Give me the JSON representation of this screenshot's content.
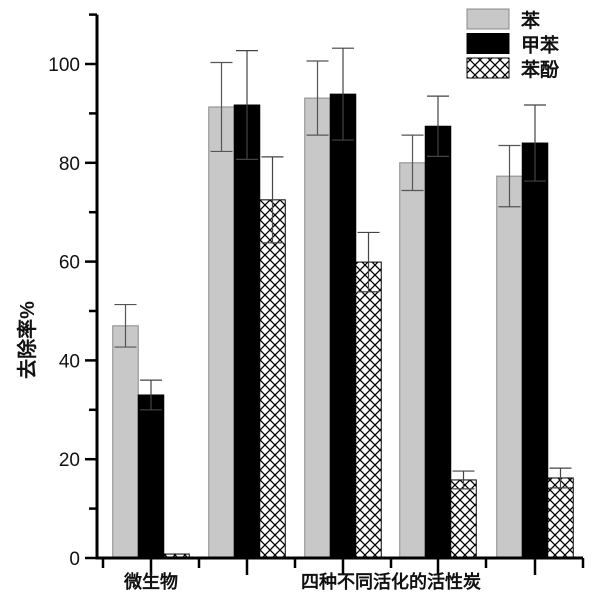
{
  "chart_data": {
    "type": "bar",
    "title": "",
    "xlabel": "",
    "ylabel": "去除率%",
    "ylim": [
      0,
      110
    ],
    "yticks": [
      0,
      20,
      40,
      60,
      80,
      100
    ],
    "grid": false,
    "legend_position": "top-right",
    "group_labels": [
      {
        "text": "微生物",
        "groups": [
          0
        ]
      },
      {
        "text": "四种不同活化的活性炭",
        "groups": [
          1,
          2,
          3,
          4
        ]
      }
    ],
    "series": [
      {
        "name": "苯",
        "color": "#c8c8c8",
        "pattern": "solid",
        "values": [
          47,
          91.3,
          93.1,
          80,
          77.3
        ],
        "errors": [
          4.3,
          9,
          7.5,
          5.6,
          6.2
        ]
      },
      {
        "name": "甲苯",
        "color": "#000000",
        "pattern": "solid",
        "values": [
          33,
          91.7,
          93.9,
          87.4,
          84
        ],
        "errors": [
          3,
          11,
          9.3,
          6.1,
          7.7
        ]
      },
      {
        "name": "苯酚",
        "color": "#ffffff",
        "pattern": "crosshatch",
        "values": [
          0.8,
          72.5,
          59.9,
          15.8,
          16.2
        ],
        "errors": [
          0,
          8.7,
          6,
          1.8,
          2
        ]
      }
    ]
  }
}
